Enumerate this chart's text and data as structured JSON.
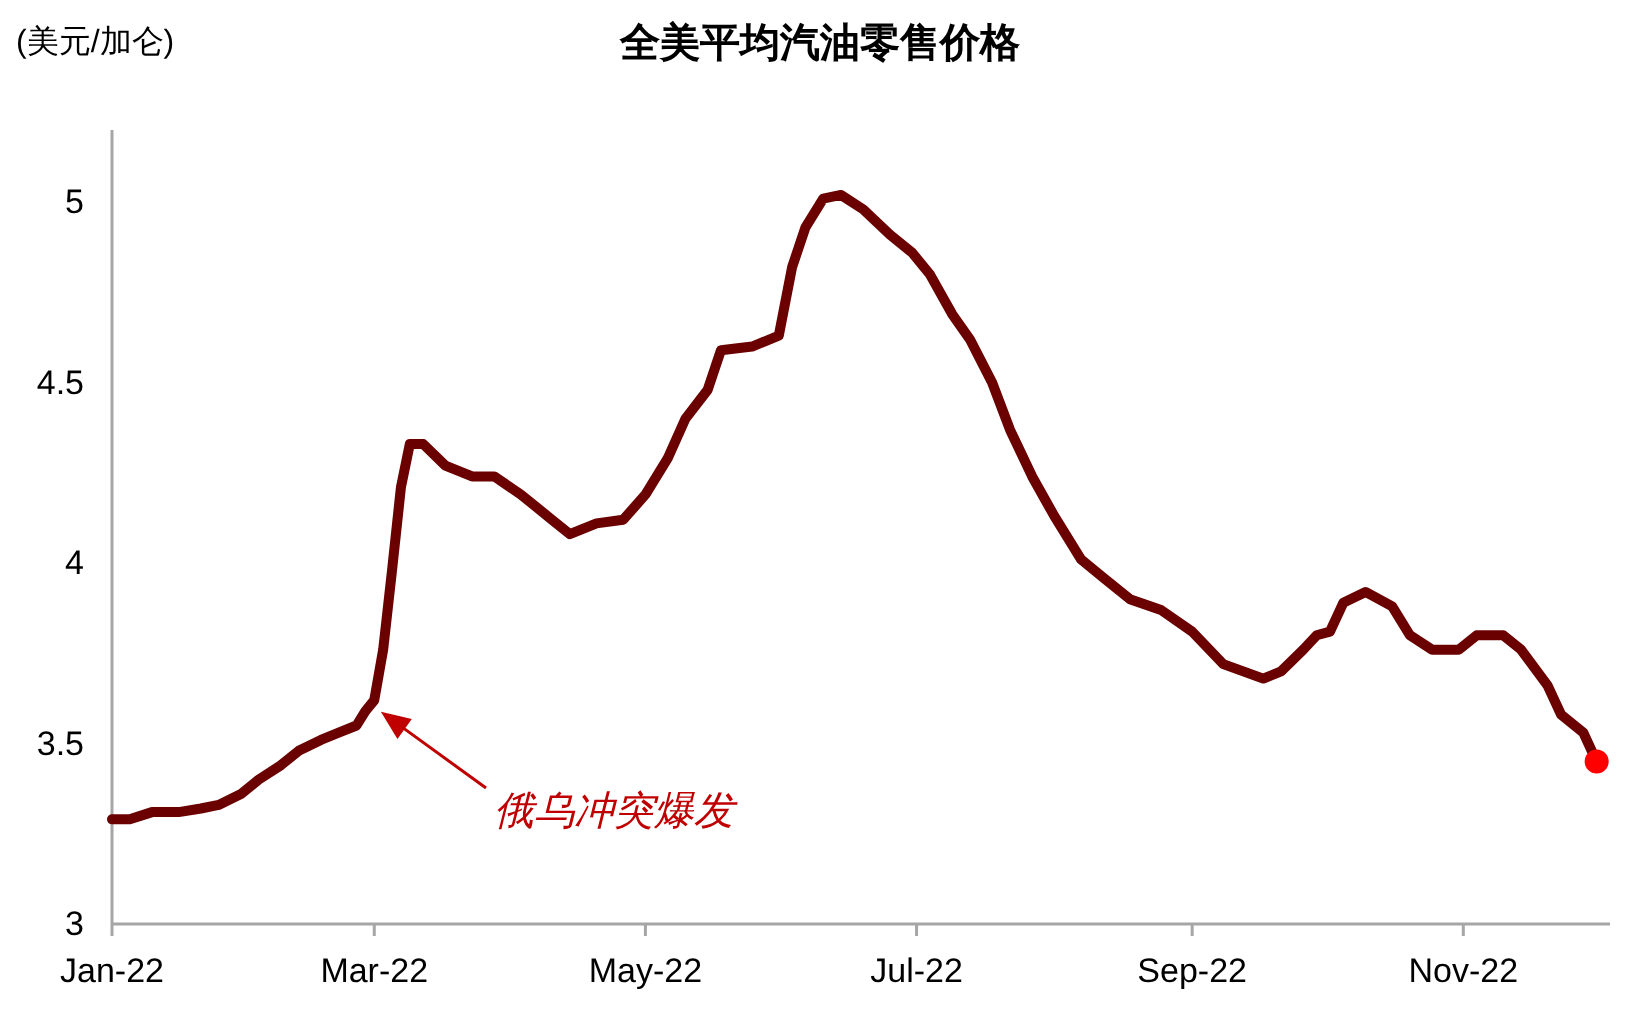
{
  "chart_data": {
    "type": "line",
    "title": "全美平均汽油零售价格",
    "ylabel": "(美元/加仑)",
    "xlim": [
      "2022-01-01",
      "2022-12-04"
    ],
    "xticks": [
      {
        "value": "2022-01-01",
        "label": "Jan-22"
      },
      {
        "value": "2022-03-01",
        "label": "Mar-22"
      },
      {
        "value": "2022-05-01",
        "label": "May-22"
      },
      {
        "value": "2022-07-01",
        "label": "Jul-22"
      },
      {
        "value": "2022-09-01",
        "label": "Sep-22"
      },
      {
        "value": "2022-11-01",
        "label": "Nov-22"
      }
    ],
    "ylim": [
      3,
      5.2
    ],
    "yticks": [
      3,
      3.5,
      4,
      4.5,
      5
    ],
    "grid": false,
    "annotations": [
      "俄乌冲突爆发"
    ],
    "series": [
      {
        "type": "line",
        "color": "#6b0000",
        "marker": "none",
        "x": [
          "2022-01-01",
          "2022-01-05",
          "2022-01-10",
          "2022-01-16",
          "2022-01-21",
          "2022-01-25",
          "2022-01-30",
          "2022-02-03",
          "2022-02-08",
          "2022-02-12",
          "2022-02-17",
          "2022-02-21",
          "2022-02-25",
          "2022-02-27",
          "2022-03-01",
          "2022-03-03",
          "2022-03-05",
          "2022-03-07",
          "2022-03-09",
          "2022-03-12",
          "2022-03-17",
          "2022-03-23",
          "2022-03-28",
          "2022-04-03",
          "2022-04-10",
          "2022-04-14",
          "2022-04-20",
          "2022-04-26",
          "2022-05-01",
          "2022-05-06",
          "2022-05-10",
          "2022-05-15",
          "2022-05-18",
          "2022-05-25",
          "2022-05-31",
          "2022-06-03",
          "2022-06-06",
          "2022-06-10",
          "2022-06-14",
          "2022-06-19",
          "2022-06-25",
          "2022-06-30",
          "2022-07-04",
          "2022-07-09",
          "2022-07-13",
          "2022-07-18",
          "2022-07-22",
          "2022-07-27",
          "2022-08-01",
          "2022-08-07",
          "2022-08-12",
          "2022-08-18",
          "2022-08-25",
          "2022-09-01",
          "2022-09-08",
          "2022-09-17",
          "2022-09-21",
          "2022-09-26",
          "2022-09-29",
          "2022-10-02",
          "2022-10-05",
          "2022-10-10",
          "2022-10-16",
          "2022-10-20",
          "2022-10-25",
          "2022-10-31",
          "2022-11-04",
          "2022-11-10",
          "2022-11-14",
          "2022-11-20",
          "2022-11-23",
          "2022-11-28",
          "2022-12-01"
        ],
        "values": [
          3.29,
          3.29,
          3.31,
          3.31,
          3.32,
          3.33,
          3.36,
          3.4,
          3.44,
          3.48,
          3.51,
          3.53,
          3.55,
          3.59,
          3.62,
          3.76,
          3.98,
          4.21,
          4.33,
          4.33,
          4.27,
          4.24,
          4.24,
          4.19,
          4.12,
          4.08,
          4.11,
          4.12,
          4.19,
          4.29,
          4.4,
          4.48,
          4.59,
          4.6,
          4.63,
          4.82,
          4.93,
          5.01,
          5.02,
          4.98,
          4.91,
          4.86,
          4.8,
          4.69,
          4.62,
          4.5,
          4.37,
          4.24,
          4.13,
          4.01,
          3.96,
          3.9,
          3.87,
          3.81,
          3.72,
          3.68,
          3.7,
          3.76,
          3.8,
          3.81,
          3.89,
          3.92,
          3.88,
          3.8,
          3.76,
          3.76,
          3.8,
          3.8,
          3.76,
          3.66,
          3.58,
          3.53,
          3.45
        ]
      },
      {
        "type": "scatter",
        "color": "#ff0000",
        "marker": "circle",
        "x": [
          "2022-12-01"
        ],
        "values": [
          3.45
        ]
      }
    ]
  }
}
